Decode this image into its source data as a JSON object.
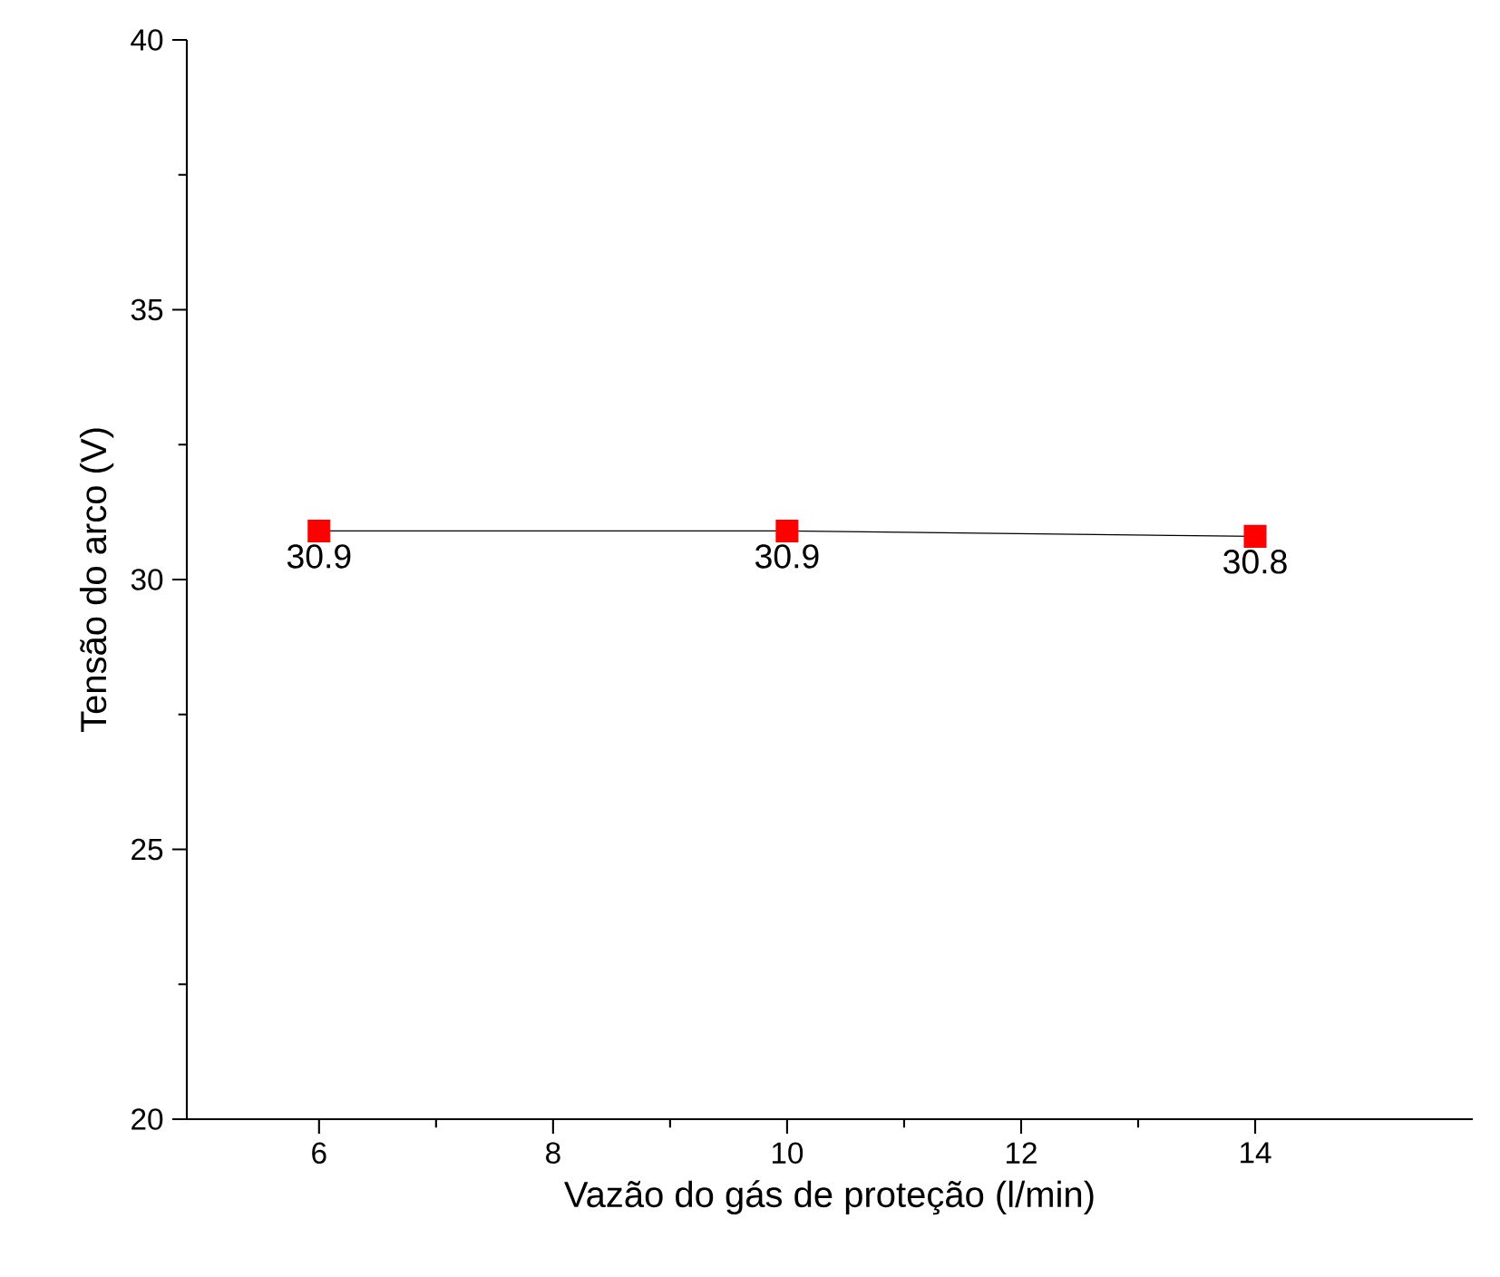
{
  "chart_data": {
    "type": "line",
    "xlabel": "Vazão do gás de proteção (l/min)",
    "ylabel": "Tensão do arco (V)",
    "x": [
      6,
      10,
      14
    ],
    "series": [
      {
        "color": "#ff0000",
        "values": [
          30.9,
          30.9,
          30.8
        ]
      }
    ],
    "xlim": [
      4.87,
      15.86
    ],
    "ylim": [
      20,
      40
    ],
    "xticks": [
      6,
      8,
      10,
      12,
      14
    ],
    "yticks": [
      20,
      25,
      30,
      35,
      40
    ],
    "marker": "square",
    "line_style": "solid",
    "data_labels": true
  }
}
